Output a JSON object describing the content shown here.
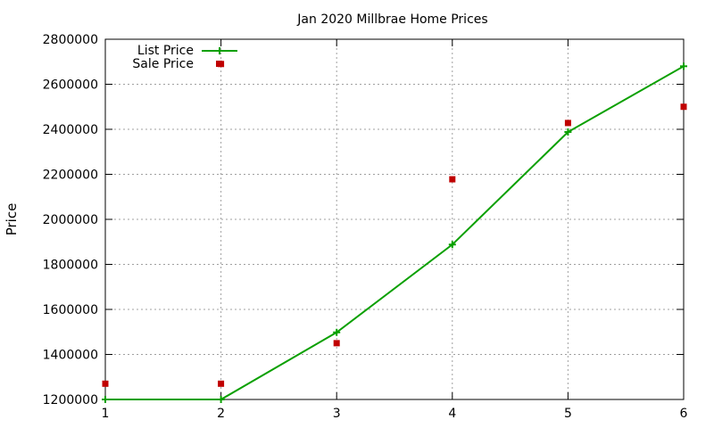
{
  "chart_data": {
    "type": "line",
    "title": "Jan 2020 Millbrae Home Prices",
    "xlabel": "",
    "ylabel": "Price",
    "x": [
      1,
      2,
      3,
      4,
      5,
      6
    ],
    "xlim": [
      1,
      6
    ],
    "ylim": [
      1200000,
      2800000
    ],
    "x_ticks": [
      1,
      2,
      3,
      4,
      5,
      6
    ],
    "y_ticks": [
      1200000,
      1400000,
      1600000,
      1800000,
      2000000,
      2200000,
      2400000,
      2600000,
      2800000
    ],
    "x_tick_labels": [
      "1",
      "2",
      "3",
      "4",
      "5",
      "6"
    ],
    "y_tick_labels": [
      "1200000",
      "1400000",
      "1600000",
      "1800000",
      "2000000",
      "2200000",
      "2400000",
      "2600000",
      "2800000"
    ],
    "grid": true,
    "legend_position": "top-left",
    "series": [
      {
        "name": "List Price",
        "style": "line-with-plus-markers",
        "color": "#0aa000",
        "values": [
          1200000,
          1200000,
          1498000,
          1888000,
          2388000,
          2680000
        ]
      },
      {
        "name": "Sale Price",
        "style": "square-points",
        "color": "#c00000",
        "values": [
          1270000,
          1270000,
          1450000,
          2178000,
          2428000,
          2500000,
          2690000
        ],
        "x": [
          1,
          2,
          3,
          4,
          5,
          6,
          2
        ]
      }
    ]
  }
}
